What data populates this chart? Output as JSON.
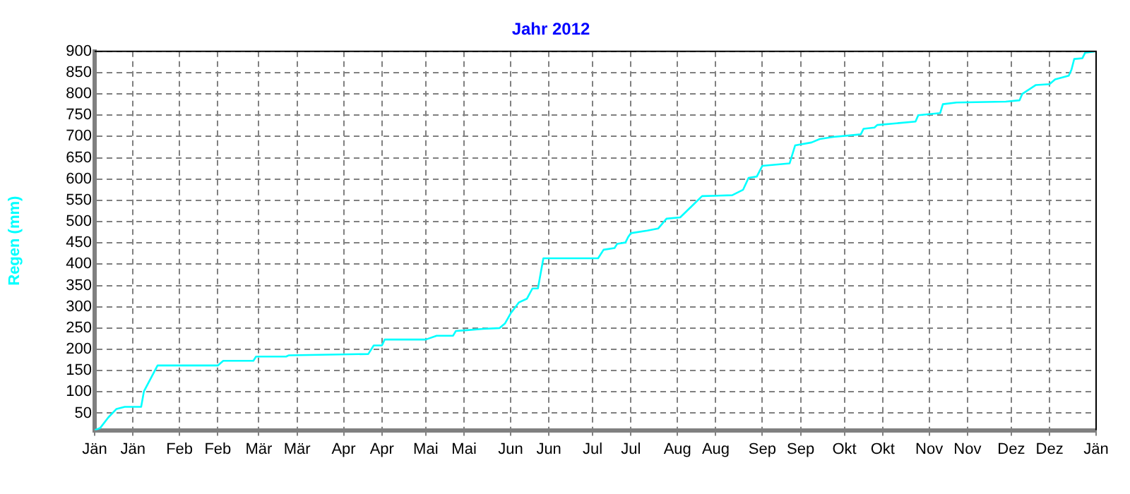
{
  "chart_data": {
    "type": "line",
    "title": "Jahr 2012",
    "ylabel": "Regen (mm)",
    "x": [
      "2012-01-01",
      "2012-01-03",
      "2012-01-06",
      "2012-01-09",
      "2012-01-12",
      "2012-01-18",
      "2012-01-19",
      "2012-01-24",
      "2012-02-15",
      "2012-02-17",
      "2012-02-28",
      "2012-02-29",
      "2012-03-11",
      "2012-03-12",
      "2012-04-10",
      "2012-04-12",
      "2012-04-15",
      "2012-04-16",
      "2012-05-01",
      "2012-05-05",
      "2012-05-11",
      "2012-05-12",
      "2012-05-16",
      "2012-05-22",
      "2012-05-28",
      "2012-05-30",
      "2012-06-01",
      "2012-06-04",
      "2012-06-07",
      "2012-06-09",
      "2012-06-11",
      "2012-06-13",
      "2012-07-03",
      "2012-07-05",
      "2012-07-09",
      "2012-07-10",
      "2012-07-13",
      "2012-07-14",
      "2012-07-15",
      "2012-07-21",
      "2012-07-25",
      "2012-07-28",
      "2012-08-02",
      "2012-08-06",
      "2012-08-10",
      "2012-08-21",
      "2012-08-25",
      "2012-08-27",
      "2012-08-30",
      "2012-09-01",
      "2012-09-11",
      "2012-09-13",
      "2012-09-19",
      "2012-09-22",
      "2012-09-27",
      "2012-10-07",
      "2012-10-08",
      "2012-10-12",
      "2012-10-13",
      "2012-10-27",
      "2012-10-28",
      "2012-11-05",
      "2012-11-06",
      "2012-11-11",
      "2012-11-29",
      "2012-12-04",
      "2012-12-05",
      "2012-12-10",
      "2012-12-15",
      "2012-12-17",
      "2012-12-22",
      "2012-12-23",
      "2012-12-24",
      "2012-12-27",
      "2012-12-28",
      "2013-01-01"
    ],
    "series": [
      {
        "color": "#00ffff",
        "values": [
          10,
          15,
          40,
          60,
          65,
          65,
          101,
          162,
          162,
          173,
          173,
          183,
          183,
          186,
          189,
          209,
          209,
          223,
          223,
          232,
          232,
          243,
          245,
          248,
          250,
          261,
          284,
          310,
          319,
          343,
          343,
          414,
          414,
          434,
          438,
          448,
          451,
          464,
          473,
          479,
          484,
          507,
          510,
          535,
          560,
          562,
          575,
          603,
          606,
          631,
          637,
          679,
          686,
          694,
          699,
          705,
          718,
          721,
          727,
          735,
          750,
          755,
          776,
          780,
          782,
          785,
          800,
          821,
          823,
          834,
          843,
          857,
          882,
          884,
          897,
          900
        ]
      }
    ],
    "xlim": [
      "2012-01-01",
      "2013-01-01"
    ],
    "xticks": [
      {
        "value": "2012-01-01",
        "label": "Jän"
      },
      {
        "value": "2012-01-15",
        "label": "Jän"
      },
      {
        "value": "2012-02-01",
        "label": "Feb"
      },
      {
        "value": "2012-02-15",
        "label": "Feb"
      },
      {
        "value": "2012-03-01",
        "label": "Mär"
      },
      {
        "value": "2012-03-15",
        "label": "Mär"
      },
      {
        "value": "2012-04-01",
        "label": "Apr"
      },
      {
        "value": "2012-04-15",
        "label": "Apr"
      },
      {
        "value": "2012-05-01",
        "label": "Mai"
      },
      {
        "value": "2012-05-15",
        "label": "Mai"
      },
      {
        "value": "2012-06-01",
        "label": "Jun"
      },
      {
        "value": "2012-06-15",
        "label": "Jun"
      },
      {
        "value": "2012-07-01",
        "label": "Jul"
      },
      {
        "value": "2012-07-15",
        "label": "Jul"
      },
      {
        "value": "2012-08-01",
        "label": "Aug"
      },
      {
        "value": "2012-08-15",
        "label": "Aug"
      },
      {
        "value": "2012-09-01",
        "label": "Sep"
      },
      {
        "value": "2012-09-15",
        "label": "Sep"
      },
      {
        "value": "2012-10-01",
        "label": "Okt"
      },
      {
        "value": "2012-10-15",
        "label": "Okt"
      },
      {
        "value": "2012-11-01",
        "label": "Nov"
      },
      {
        "value": "2012-11-15",
        "label": "Nov"
      },
      {
        "value": "2012-12-01",
        "label": "Dez"
      },
      {
        "value": "2012-12-15",
        "label": "Dez"
      },
      {
        "value": "2013-01-01",
        "label": "Jän"
      }
    ],
    "ylim": [
      10,
      900
    ],
    "yticks": [
      50,
      100,
      150,
      200,
      250,
      300,
      350,
      400,
      450,
      500,
      550,
      600,
      650,
      700,
      750,
      800,
      850,
      900
    ],
    "grid": true,
    "marker": "none",
    "line_style": "solid",
    "legend": false
  }
}
